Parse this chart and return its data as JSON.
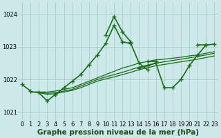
{
  "background_color": "#cce8e8",
  "grid_color": "#aacccc",
  "line_color": "#1a6b1a",
  "marker_color": "#1a6b1a",
  "xlabel": "Graphe pression niveau de la mer (hPa)",
  "xlabel_fontsize": 7.5,
  "tick_fontsize": 6,
  "ylim": [
    1020.75,
    1024.35
  ],
  "yticks": [
    1021,
    1022,
    1023,
    1024
  ],
  "xlim": [
    -0.5,
    23.5
  ],
  "xticks": [
    0,
    1,
    2,
    3,
    4,
    5,
    6,
    7,
    8,
    9,
    10,
    11,
    12,
    13,
    14,
    15,
    16,
    17,
    18,
    19,
    20,
    21,
    22,
    23
  ],
  "series": [
    {
      "x": [
        0,
        1,
        2,
        3,
        4,
        5,
        6,
        7,
        8,
        9,
        10,
        11,
        12,
        13,
        14,
        15,
        16,
        17,
        18,
        19,
        20,
        21,
        22,
        23
      ],
      "y": [
        1021.85,
        1021.65,
        null,
        null,
        1021.55,
        null,
        null,
        null,
        null,
        null,
        1023.35,
        1023.92,
        1023.45,
        1023.15,
        null,
        1022.55,
        1022.55,
        null,
        null,
        null,
        null,
        1023.05,
        1023.05,
        null
      ],
      "has_markers": true,
      "lw": 1.2
    },
    {
      "x": [
        0,
        1,
        2,
        3,
        4,
        5,
        6,
        7,
        8,
        9,
        10,
        11,
        12,
        13,
        14,
        15,
        16,
        17,
        18,
        19,
        20,
        21,
        22,
        23
      ],
      "y": [
        null,
        null,
        1021.6,
        1021.35,
        1021.55,
        1021.75,
        1021.95,
        1022.15,
        1022.45,
        1022.75,
        1023.1,
        1023.65,
        1023.15,
        1023.1,
        1022.5,
        1022.3,
        null,
        null,
        null,
        null,
        null,
        null,
        null,
        null
      ],
      "has_markers": true,
      "lw": 1.2
    },
    {
      "x": [
        1,
        2,
        3,
        4,
        5,
        6,
        7,
        8,
        9,
        10,
        11,
        12,
        13,
        14,
        15,
        16,
        17,
        18,
        19,
        20,
        21,
        22,
        23
      ],
      "y": [
        1021.62,
        1021.62,
        1021.62,
        1021.65,
        1021.7,
        1021.75,
        1021.85,
        1021.95,
        1022.05,
        1022.15,
        1022.25,
        1022.35,
        1022.42,
        1022.5,
        1022.55,
        1022.6,
        1022.62,
        1022.65,
        1022.68,
        1022.72,
        1022.75,
        1022.8,
        1022.85
      ],
      "has_markers": false,
      "lw": 0.9
    },
    {
      "x": [
        1,
        2,
        3,
        4,
        5,
        6,
        7,
        8,
        9,
        10,
        11,
        12,
        13,
        14,
        15,
        16,
        17,
        18,
        19,
        20,
        21,
        22,
        23
      ],
      "y": [
        1021.62,
        1021.62,
        1021.58,
        1021.6,
        1021.65,
        1021.7,
        1021.8,
        1021.9,
        1022.0,
        1022.08,
        1022.15,
        1022.22,
        1022.3,
        1022.38,
        1022.44,
        1022.5,
        1022.54,
        1022.58,
        1022.62,
        1022.66,
        1022.7,
        1022.75,
        1022.8
      ],
      "has_markers": false,
      "lw": 0.9
    },
    {
      "x": [
        1,
        2,
        3,
        4,
        5,
        6,
        7,
        8,
        9,
        10,
        11,
        12,
        13,
        14,
        15,
        16,
        17,
        18,
        19,
        20,
        21,
        22,
        23
      ],
      "y": [
        1021.62,
        1021.6,
        1021.55,
        1021.57,
        1021.62,
        1021.67,
        1021.75,
        1021.85,
        1021.95,
        1022.02,
        1022.08,
        1022.15,
        1022.22,
        1022.3,
        1022.36,
        1022.42,
        1022.46,
        1022.5,
        1022.54,
        1022.58,
        1022.62,
        1022.67,
        1022.72
      ],
      "has_markers": false,
      "lw": 0.9
    },
    {
      "x": [
        14,
        15,
        16,
        17,
        18,
        19,
        20,
        21,
        22,
        23
      ],
      "y": [
        1022.35,
        1022.42,
        1022.5,
        1021.75,
        1021.75,
        1022.0,
        1022.42,
        1022.75,
        1023.05,
        1023.08
      ],
      "has_markers": true,
      "lw": 1.2
    }
  ]
}
